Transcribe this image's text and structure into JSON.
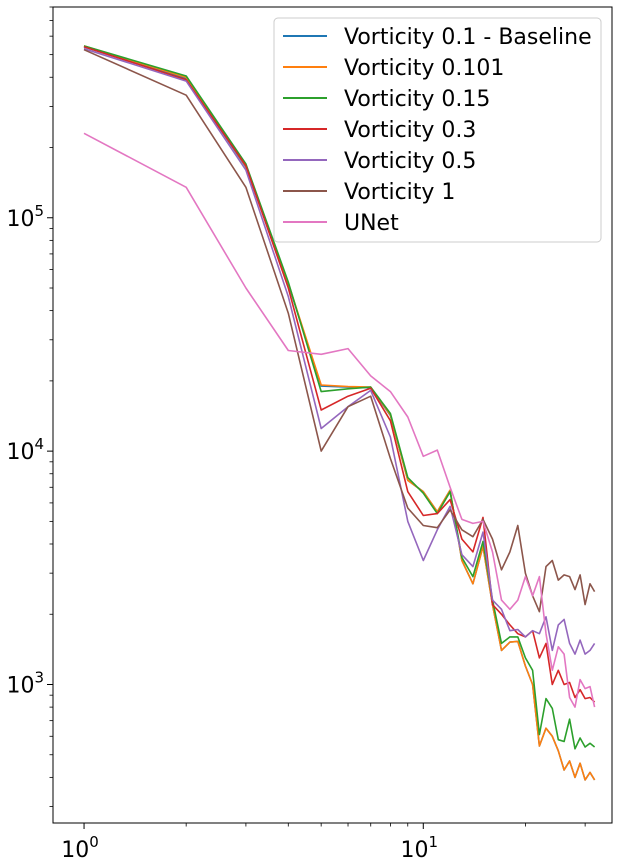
{
  "chart_data": {
    "type": "line",
    "xscale": "log",
    "yscale": "log",
    "xlim": [
      0.81,
      36
    ],
    "ylim": [
      255,
      800000
    ],
    "grid": false,
    "legend_position": "top-right",
    "x_ticks": [
      {
        "value": 1,
        "base": "10",
        "exp": "0"
      },
      {
        "value": 10,
        "base": "10",
        "exp": "1"
      }
    ],
    "y_ticks": [
      {
        "value": 1000,
        "base": "10",
        "exp": "3"
      },
      {
        "value": 10000,
        "base": "10",
        "exp": "4"
      },
      {
        "value": 100000,
        "base": "10",
        "exp": "5"
      }
    ],
    "x": [
      1,
      2,
      3,
      4,
      5,
      6,
      7,
      8,
      9,
      10,
      11,
      12,
      13,
      14,
      15,
      16,
      17,
      18,
      19,
      20,
      21,
      22,
      23,
      24,
      25,
      26,
      27,
      28,
      29,
      30,
      31,
      32
    ],
    "series": [
      {
        "name": "Vorticity 0.1 - Baseline",
        "color": "#1f77b4",
        "values": [
          540000,
          395000,
          165000,
          52000,
          19000,
          18800,
          18700,
          14200,
          7500,
          6700,
          5500,
          6800,
          3400,
          2700,
          3900,
          2200,
          1400,
          1520,
          1530,
          1200,
          1000,
          545,
          650,
          600,
          520,
          430,
          470,
          400,
          460,
          390,
          420,
          390
        ]
      },
      {
        "name": "Vorticity 0.101",
        "color": "#ff7f0e",
        "values": [
          545000,
          400000,
          166000,
          52500,
          19200,
          18900,
          18800,
          14300,
          7500,
          6700,
          5500,
          6800,
          3400,
          2700,
          3900,
          2200,
          1400,
          1520,
          1530,
          1200,
          1000,
          545,
          650,
          600,
          520,
          430,
          470,
          400,
          460,
          390,
          420,
          390
        ]
      },
      {
        "name": "Vorticity 0.15",
        "color": "#2ca02c",
        "values": [
          545000,
          405000,
          170000,
          53000,
          18000,
          18500,
          18800,
          14500,
          7700,
          6600,
          5400,
          6700,
          3500,
          2900,
          4100,
          2300,
          1500,
          1600,
          1600,
          1300,
          1150,
          610,
          870,
          790,
          580,
          570,
          710,
          530,
          590,
          540,
          560,
          540
        ]
      },
      {
        "name": "Vorticity 0.3",
        "color": "#d62728",
        "values": [
          540000,
          390000,
          167000,
          50000,
          15000,
          17200,
          18600,
          13500,
          6700,
          5300,
          5400,
          6200,
          4200,
          3700,
          5200,
          2200,
          2000,
          1800,
          1650,
          1600,
          1700,
          1300,
          1500,
          1000,
          1150,
          1000,
          1020,
          880,
          950,
          870,
          880,
          840
        ]
      },
      {
        "name": "Vorticity 0.5",
        "color": "#9467bd",
        "values": [
          530000,
          385000,
          160000,
          46000,
          12500,
          15500,
          18200,
          11500,
          5000,
          3400,
          4600,
          5800,
          3600,
          3200,
          4500,
          2300,
          2100,
          1700,
          1720,
          1600,
          1700,
          1650,
          1950,
          1400,
          1800,
          1900,
          1500,
          1350,
          1550,
          1350,
          1400,
          1500
        ]
      },
      {
        "name": "Vorticity 1",
        "color": "#8c564b",
        "values": [
          525000,
          335000,
          135000,
          39000,
          10000,
          15500,
          17200,
          9300,
          5700,
          4800,
          4700,
          5600,
          4600,
          4300,
          5100,
          4200,
          3100,
          3700,
          4800,
          3000,
          2400,
          2050,
          3200,
          3400,
          2800,
          2950,
          2900,
          2550,
          2950,
          2200,
          2700,
          2500
        ]
      },
      {
        "name": "UNet",
        "color": "#e377c2",
        "values": [
          230000,
          135000,
          50000,
          27000,
          26000,
          27500,
          21000,
          18000,
          14000,
          9500,
          10100,
          7000,
          5100,
          4900,
          5000,
          3700,
          2300,
          2100,
          2300,
          2900,
          2400,
          2900,
          1650,
          1150,
          1450,
          1350,
          880,
          800,
          1050,
          960,
          980,
          800
        ]
      }
    ]
  }
}
